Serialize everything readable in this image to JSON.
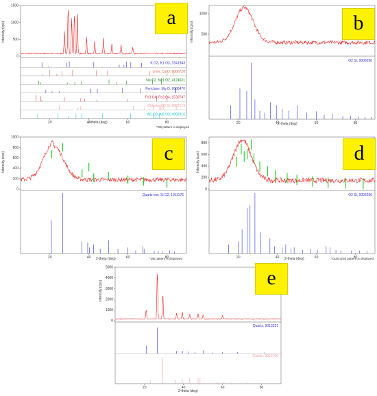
{
  "panels": [
    {
      "id": "a",
      "label": "a",
      "ylabel": "Intensity (cps)",
      "xlabel": "2-theta (deg)",
      "note": "*DB pattern is displayed",
      "yticks": [
        "1500",
        "1000",
        "500",
        "0"
      ],
      "xticks": [
        "20",
        "40",
        "60",
        "80"
      ]
    },
    {
      "id": "b",
      "label": "b",
      "ylabel": "Intensity (cps)",
      "xlabel": "2-theta (deg)",
      "note": "",
      "yticks": [
        "1000",
        "500"
      ],
      "xticks": [
        "20",
        "40",
        "60",
        "80"
      ]
    },
    {
      "id": "c",
      "label": "c",
      "ylabel": "Intensity (cps)",
      "xlabel": "2-theta (deg)",
      "note": "*DB pattern is displayed",
      "yticks": [
        "1000",
        "800",
        "600",
        "400",
        "200",
        "0"
      ],
      "xticks": [
        "20",
        "40",
        "60",
        "80"
      ]
    },
    {
      "id": "d",
      "label": "d",
      "ylabel": "Intensity (cps)",
      "xlabel": "2-theta (deg)",
      "note": "*Optimized pattern is displayed",
      "yticks": [
        "800",
        "600",
        "400",
        "200",
        "0"
      ],
      "xticks": [
        "20",
        "40",
        "60",
        "80"
      ]
    },
    {
      "id": "e",
      "label": "e",
      "ylabel": "Intensity (cps)",
      "xlabel": "2-theta (deg)",
      "note": "",
      "yticks": [
        "5000",
        "4000",
        "3000",
        "2000",
        "1000",
        "0"
      ],
      "xticks": [
        "20",
        "40",
        "60",
        "80"
      ]
    }
  ],
  "colors": {
    "measured": "#e8221e",
    "reference_blue": "#3030e0",
    "fit_green": "#22cc22"
  },
  "chart_data": [
    {
      "panel": "a",
      "type": "line",
      "x_range": [
        5,
        90
      ],
      "ylim": [
        0,
        1500
      ],
      "peaks": [
        {
          "x": 29.4,
          "y": 1450
        },
        {
          "x": 31.2,
          "y": 1100
        },
        {
          "x": 32.6,
          "y": 1250
        },
        {
          "x": 34.1,
          "y": 1350
        },
        {
          "x": 27.5,
          "y": 650
        },
        {
          "x": 38.8,
          "y": 500
        },
        {
          "x": 43.0,
          "y": 350
        },
        {
          "x": 47.5,
          "y": 450
        },
        {
          "x": 51.8,
          "y": 300
        },
        {
          "x": 56.5,
          "y": 250
        },
        {
          "x": 62.5,
          "y": 200
        }
      ],
      "references": [
        {
          "name": "K O3, K1 O3, 1541943",
          "color": "#3030e0"
        },
        {
          "name": "Lime, Ca O, 9006728",
          "color": "#e86a50"
        },
        {
          "name": "Na O2, Na1 O2, 4124631",
          "color": "#1a8a1a"
        },
        {
          "name": "Periclase, Mg O, 9006470",
          "color": "#4040d8"
        },
        {
          "name": "Fe3 O4, Fe3 O4, 1539747",
          "color": "#e0304a"
        },
        {
          "name": "Chlorite, O2 Si, 9007173",
          "color": "#f0a0a0"
        },
        {
          "name": "Al2 O3, Al2 O3, 4002416",
          "color": "#20c8d8"
        }
      ]
    },
    {
      "panel": "b",
      "type": "line",
      "x_range": [
        5,
        90
      ],
      "ylim": [
        0,
        1200
      ],
      "shape": {
        "hump_center": 23,
        "hump_height": 1150,
        "baseline": 300
      },
      "references": [
        {
          "name": "O2 Si, 9006290",
          "color": "#3030e0"
        }
      ]
    },
    {
      "panel": "c",
      "type": "line",
      "x_range": [
        5,
        90
      ],
      "ylim": [
        0,
        1000
      ],
      "shape": {
        "hump_center": 22,
        "hump_height": 900,
        "baseline": 180
      },
      "references": [
        {
          "name": "Quartz low, Si O2, 1011176",
          "color": "#3030e0"
        }
      ]
    },
    {
      "panel": "d",
      "type": "line",
      "x_range": [
        5,
        90
      ],
      "ylim": [
        0,
        900
      ],
      "shape": {
        "hump_center": 22,
        "hump_height": 850,
        "baseline": 150
      },
      "references": [
        {
          "name": "O2 Si, 9006290",
          "color": "#3030e0"
        }
      ]
    },
    {
      "panel": "e",
      "type": "line",
      "x_range": [
        5,
        90
      ],
      "ylim": [
        0,
        5000
      ],
      "peaks": [
        {
          "x": 26.6,
          "y": 4700
        },
        {
          "x": 29.4,
          "y": 2400
        },
        {
          "x": 20.9,
          "y": 900
        },
        {
          "x": 36.5,
          "y": 550
        },
        {
          "x": 39.4,
          "y": 700
        },
        {
          "x": 43.2,
          "y": 450
        },
        {
          "x": 47.5,
          "y": 500
        },
        {
          "x": 50.1,
          "y": 450
        },
        {
          "x": 60.0,
          "y": 300
        }
      ],
      "references": [
        {
          "name": "Quartz, 9013321",
          "color": "#3030e0"
        },
        {
          "name": "Calcite, 9016706",
          "color": "#f0a0a0"
        }
      ]
    }
  ]
}
